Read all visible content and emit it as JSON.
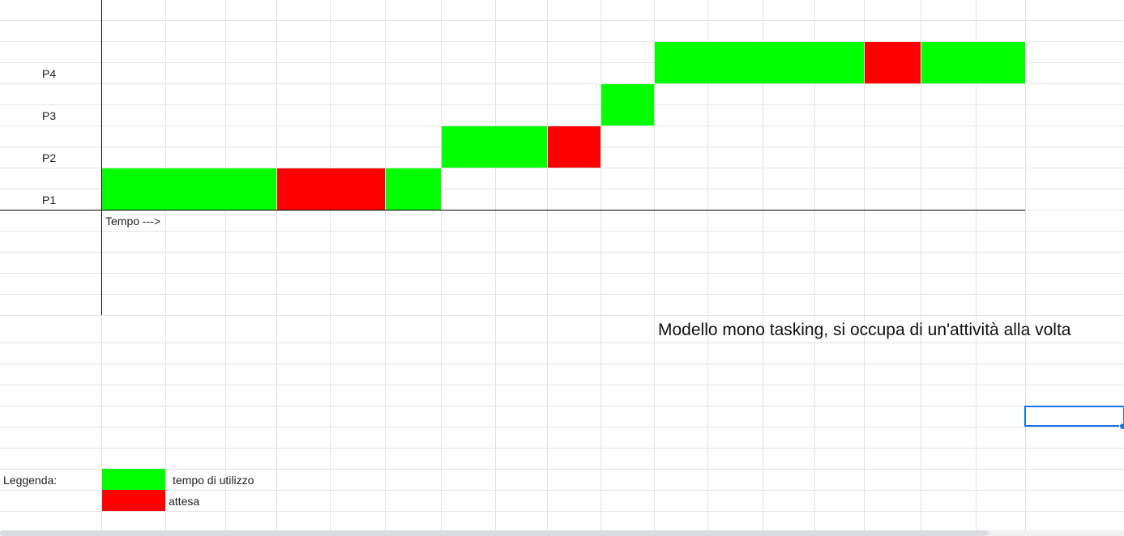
{
  "colors": {
    "running": "#00ff00",
    "waiting": "#ff0000",
    "selection": "#1a73e8"
  },
  "chart": {
    "rows": [
      "P1",
      "P2",
      "P3",
      "P4"
    ],
    "axis_label": "Tempo --->",
    "segments": [
      {
        "process": "P1",
        "state": "running",
        "start": 0,
        "end": 3
      },
      {
        "process": "P1",
        "state": "waiting",
        "start": 3,
        "end": 5
      },
      {
        "process": "P1",
        "state": "running",
        "start": 5,
        "end": 6
      },
      {
        "process": "P2",
        "state": "running",
        "start": 6,
        "end": 8
      },
      {
        "process": "P2",
        "state": "waiting",
        "start": 8,
        "end": 9
      },
      {
        "process": "P3",
        "state": "running",
        "start": 9,
        "end": 10
      },
      {
        "process": "P4",
        "state": "running",
        "start": 10,
        "end": 14
      },
      {
        "process": "P4",
        "state": "waiting",
        "start": 14,
        "end": 15
      },
      {
        "process": "P4",
        "state": "running",
        "start": 15,
        "end": 17
      }
    ]
  },
  "caption": "Modello mono tasking, si occupa di un'attività alla volta",
  "legend": {
    "title": "Leggenda:",
    "items": [
      {
        "state": "running",
        "label": "tempo di utilizzo"
      },
      {
        "state": "waiting",
        "label": "attesa"
      }
    ]
  }
}
